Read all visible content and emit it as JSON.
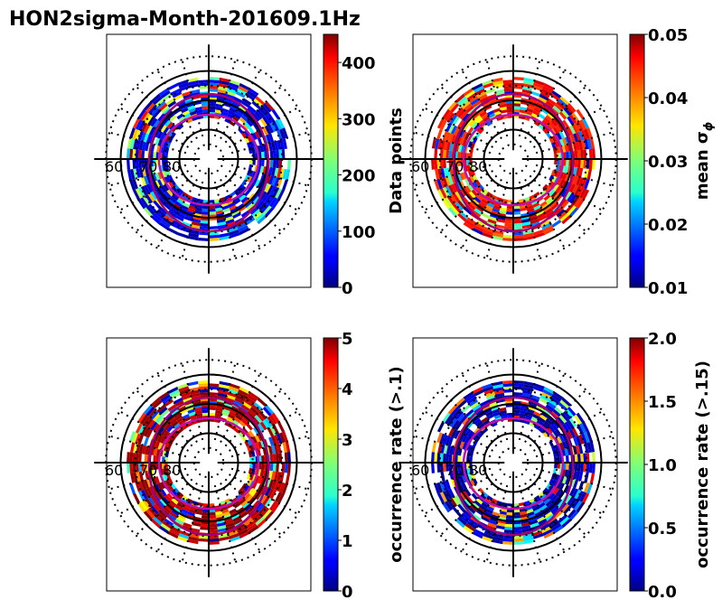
{
  "title": "HON2sigma-Month-201609.1Hz",
  "colors": {
    "ring": "#000000",
    "oval_outer": "#a0007a",
    "oval_inner": "#c010b0",
    "background": "#ffffff"
  },
  "chart_data": [
    {
      "type": "heatmap",
      "projection": "polar (magnetic latitude / MLT)",
      "lat_ticks": [
        "60",
        "70",
        "80"
      ],
      "colorbar": {
        "label": "Data points",
        "min": 0,
        "max": 450,
        "ticks": [
          0,
          100,
          200,
          300,
          400
        ],
        "tick_labels": [
          "0",
          "100",
          "200",
          "300",
          "400"
        ]
      },
      "coverage_lat_range": [
        62,
        76
      ],
      "dominant_value": 40
    },
    {
      "type": "heatmap",
      "projection": "polar (magnetic latitude / MLT)",
      "lat_ticks": [
        "60",
        "70",
        "80"
      ],
      "colorbar": {
        "label": "mean σ",
        "label_subscript": "ϕ",
        "min": 0.01,
        "max": 0.05,
        "ticks": [
          0.01,
          0.02,
          0.03,
          0.04,
          0.05
        ],
        "tick_labels": [
          "0.01",
          "0.02",
          "0.03",
          "0.04",
          "0.05"
        ]
      },
      "coverage_lat_range": [
        62,
        76
      ],
      "dominant_value": 0.045
    },
    {
      "type": "heatmap",
      "projection": "polar (magnetic latitude / MLT)",
      "lat_ticks": [
        "60",
        "70",
        "80"
      ],
      "colorbar": {
        "label": "occurrence rate (>.1)",
        "min": 0,
        "max": 5,
        "ticks": [
          0,
          1,
          2,
          3,
          4,
          5
        ],
        "tick_labels": [
          "0",
          "1",
          "2",
          "3",
          "4",
          "5"
        ]
      },
      "coverage_lat_range": [
        62,
        76
      ],
      "dominant_value": 4.8
    },
    {
      "type": "heatmap",
      "projection": "polar (magnetic latitude / MLT)",
      "lat_ticks": [
        "60",
        "70",
        "80"
      ],
      "colorbar": {
        "label": "occurrence rate (>.15)",
        "min": 0,
        "max": 2,
        "ticks": [
          0,
          0.5,
          1,
          1.5,
          2
        ],
        "tick_labels": [
          "0.0",
          "0.5",
          "1.0",
          "1.5",
          "2.0"
        ]
      },
      "coverage_lat_range": [
        62,
        76
      ],
      "dominant_value": 0.1
    }
  ]
}
